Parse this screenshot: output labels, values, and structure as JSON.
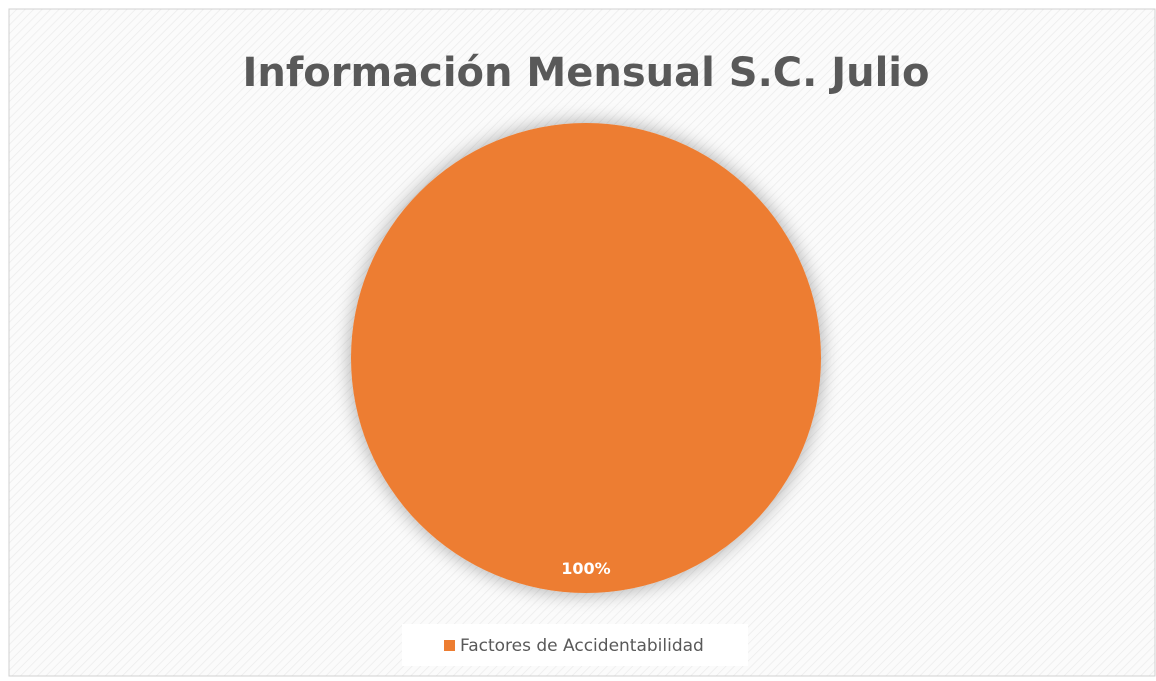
{
  "chart_data": {
    "type": "pie",
    "title": "Información Mensual S.C. Julio",
    "categories": [
      "Factores de Accidentabilidad"
    ],
    "values": [
      100
    ],
    "value_labels": [
      "100%"
    ],
    "colors": [
      "#ED7D31"
    ],
    "legend": "bottom"
  }
}
